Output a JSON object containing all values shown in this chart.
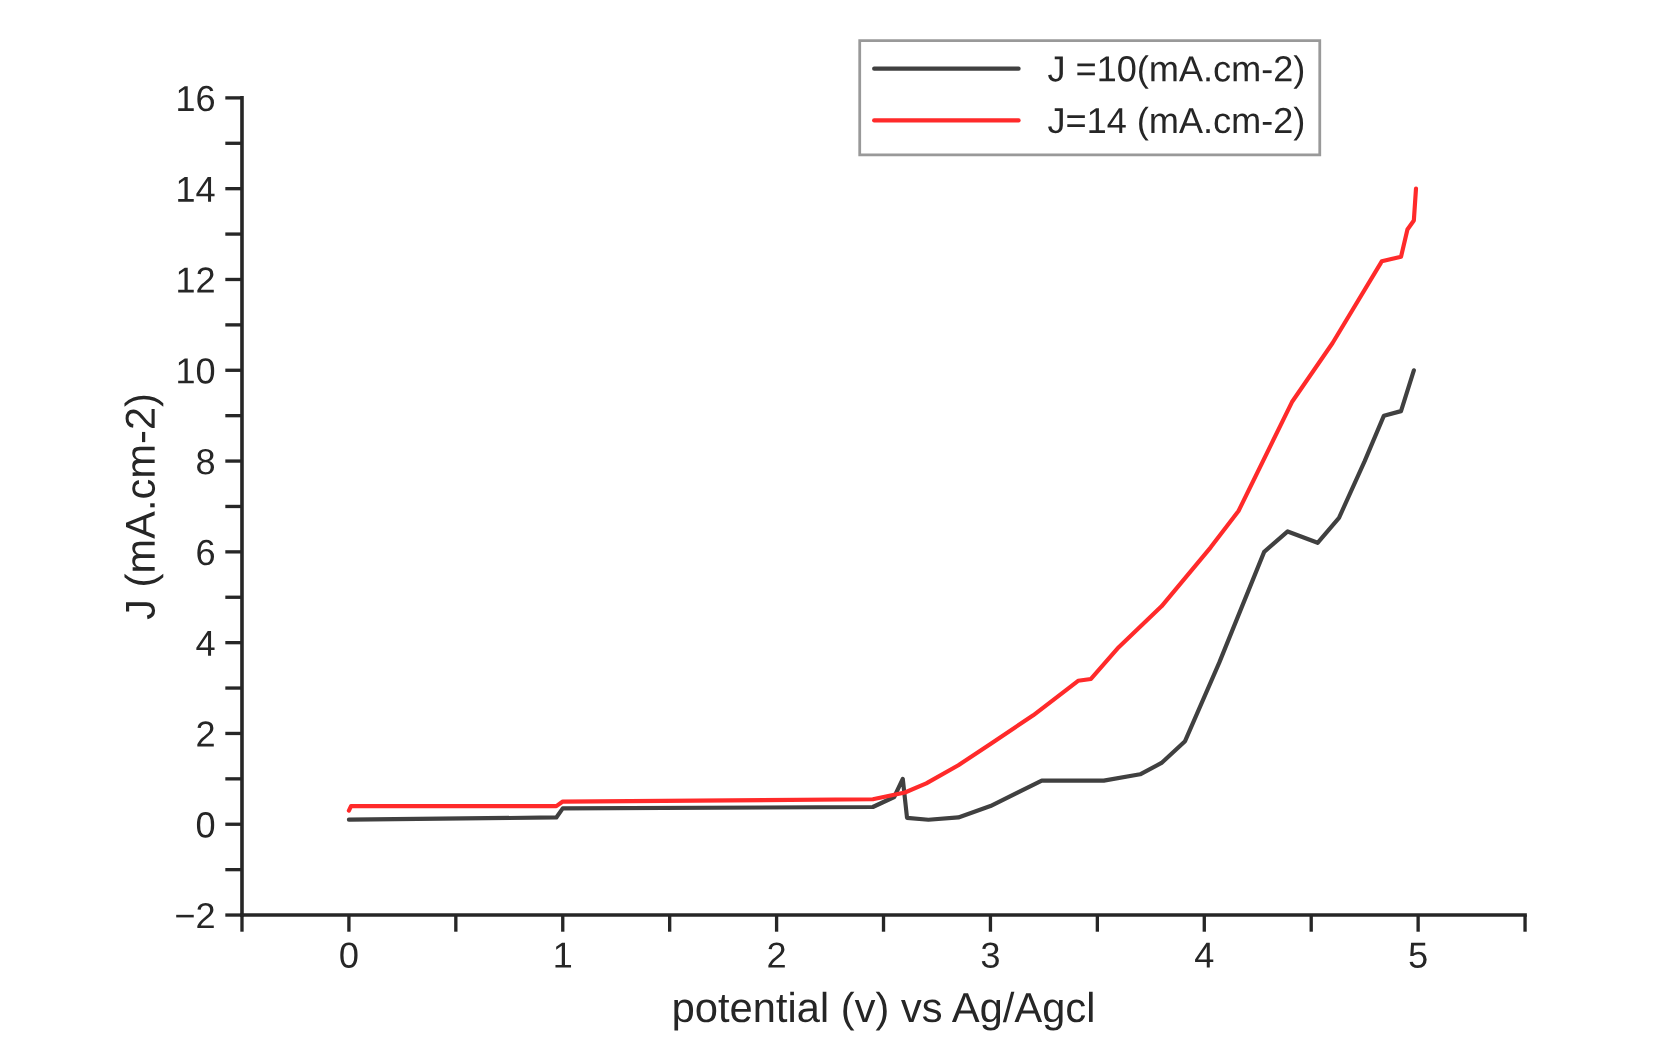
{
  "chart_data": {
    "type": "line",
    "xlabel": "potential (v) vs Ag/Agcl",
    "ylabel": "J (mA.cm-2)",
    "xlim": [
      -0.5,
      5.5
    ],
    "xticks": [
      {
        "value": -0.5,
        "label": null
      },
      0,
      {
        "value": 0.5,
        "label": null
      },
      1,
      {
        "value": 1.5,
        "label": null
      },
      2,
      {
        "value": 2.5,
        "label": null
      },
      3,
      {
        "value": 3.5,
        "label": null
      },
      4,
      {
        "value": 4.5,
        "label": null
      },
      5,
      {
        "value": 5.5,
        "label": null
      }
    ],
    "ylim": [
      -2,
      16
    ],
    "yticks": [
      {
        "value": -2,
        "label": "−2"
      },
      {
        "value": -1,
        "label": null
      },
      0,
      {
        "value": 1,
        "label": null
      },
      2,
      {
        "value": 3,
        "label": null
      },
      4,
      {
        "value": 5,
        "label": null
      },
      6,
      {
        "value": 7,
        "label": null
      },
      8,
      {
        "value": 9,
        "label": null
      },
      10,
      {
        "value": 11,
        "label": null
      },
      12,
      {
        "value": 13,
        "label": null
      },
      14,
      {
        "value": 15,
        "label": null
      },
      16
    ],
    "grid": false,
    "legend": "top right",
    "marker": "none",
    "line_style": "solid",
    "series": [
      {
        "name": "J =10(mA.cm-2)",
        "color": "#404040",
        "x": [
          0,
          0.97,
          1.0,
          2.45,
          2.55,
          2.59,
          2.61,
          2.71,
          2.85,
          3.0,
          3.24,
          3.53,
          3.7,
          3.8,
          3.91,
          4.07,
          4.28,
          4.39,
          4.53,
          4.63,
          4.75,
          4.84,
          4.92,
          4.98
        ],
        "values": [
          0.1,
          0.15,
          0.35,
          0.38,
          0.6,
          1.0,
          0.14,
          0.1,
          0.15,
          0.4,
          0.96,
          0.96,
          1.1,
          1.35,
          1.83,
          3.56,
          6.0,
          6.45,
          6.2,
          6.75,
          8.0,
          9.0,
          9.1,
          10.0
        ]
      },
      {
        "name": "J=14 (mA.cm-2)",
        "color": "#ff2a2a",
        "x": [
          0,
          0.01,
          0.97,
          1.0,
          2.45,
          2.6,
          2.7,
          2.85,
          3.0,
          3.2,
          3.41,
          3.47,
          3.6,
          3.8,
          4.03,
          4.16,
          4.41,
          4.6,
          4.83,
          4.92,
          4.95,
          4.98,
          4.99
        ],
        "values": [
          0.3,
          0.4,
          0.4,
          0.5,
          0.55,
          0.7,
          0.9,
          1.3,
          1.77,
          2.4,
          3.16,
          3.2,
          3.9,
          4.8,
          6.1,
          6.9,
          9.3,
          10.6,
          12.4,
          12.5,
          13.1,
          13.3,
          14.0
        ]
      }
    ]
  }
}
